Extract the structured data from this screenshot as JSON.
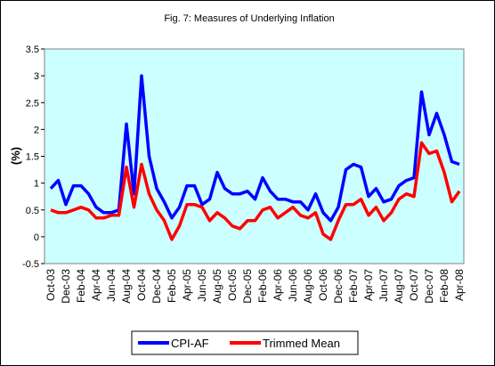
{
  "chart_data": {
    "type": "line",
    "title": "Fig. 7: Measures of Underlying Inflation",
    "ylabel": "(%)",
    "categories": [
      "Oct-03",
      null,
      "Dec-03",
      null,
      "Feb-04",
      null,
      "Apr-04",
      null,
      "Jun-04",
      null,
      "Aug-04",
      null,
      "Oct-04",
      null,
      "Dec-04",
      null,
      "Feb-05",
      null,
      "Apr-05",
      null,
      "Jun-05",
      null,
      "Aug-05",
      null,
      "Oct-05",
      null,
      "Dec-05",
      null,
      "Feb-06",
      null,
      "Apr-06",
      null,
      "Jun-06",
      null,
      "Aug-06",
      null,
      "Oct-06",
      null,
      "Dec-06",
      null,
      "Feb-07",
      null,
      "Apr-07",
      null,
      "Jun-07",
      null,
      "Aug-07",
      null,
      "Oct-07",
      null,
      "Dec-07",
      null,
      "Feb-08",
      null,
      "Apr-08"
    ],
    "series": [
      {
        "name": "CPI-AF",
        "color": "#0000ff",
        "values": [
          0.9,
          1.05,
          0.6,
          0.95,
          0.95,
          0.8,
          0.55,
          0.45,
          0.45,
          0.5,
          2.1,
          0.8,
          3.0,
          1.5,
          0.9,
          0.65,
          0.35,
          0.55,
          0.95,
          0.95,
          0.6,
          0.7,
          1.2,
          0.9,
          0.8,
          0.8,
          0.85,
          0.7,
          1.1,
          0.85,
          0.7,
          0.7,
          0.65,
          0.65,
          0.5,
          0.8,
          0.45,
          0.3,
          0.55,
          1.25,
          1.35,
          1.3,
          0.75,
          0.9,
          0.65,
          0.7,
          0.95,
          1.05,
          1.1,
          2.7,
          1.9,
          2.3,
          1.9,
          1.4,
          1.35
        ]
      },
      {
        "name": "Trimmed Mean",
        "color": "#ff0000",
        "values": [
          0.5,
          0.45,
          0.45,
          0.5,
          0.55,
          0.5,
          0.35,
          0.35,
          0.4,
          0.4,
          1.3,
          0.55,
          1.35,
          0.8,
          0.5,
          0.3,
          -0.05,
          0.2,
          0.6,
          0.6,
          0.55,
          0.3,
          0.45,
          0.35,
          0.2,
          0.15,
          0.3,
          0.3,
          0.5,
          0.55,
          0.35,
          0.45,
          0.55,
          0.4,
          0.35,
          0.45,
          0.05,
          -0.05,
          0.3,
          0.6,
          0.6,
          0.7,
          0.4,
          0.55,
          0.3,
          0.45,
          0.7,
          0.8,
          0.75,
          1.75,
          1.55,
          1.6,
          1.2,
          0.65,
          0.85
        ]
      }
    ],
    "ylim": [
      -0.5,
      3.5
    ],
    "yticks": [
      -0.5,
      0,
      0.5,
      1,
      1.5,
      2,
      2.5,
      3,
      3.5
    ],
    "grid": false,
    "legend": "bottom"
  }
}
